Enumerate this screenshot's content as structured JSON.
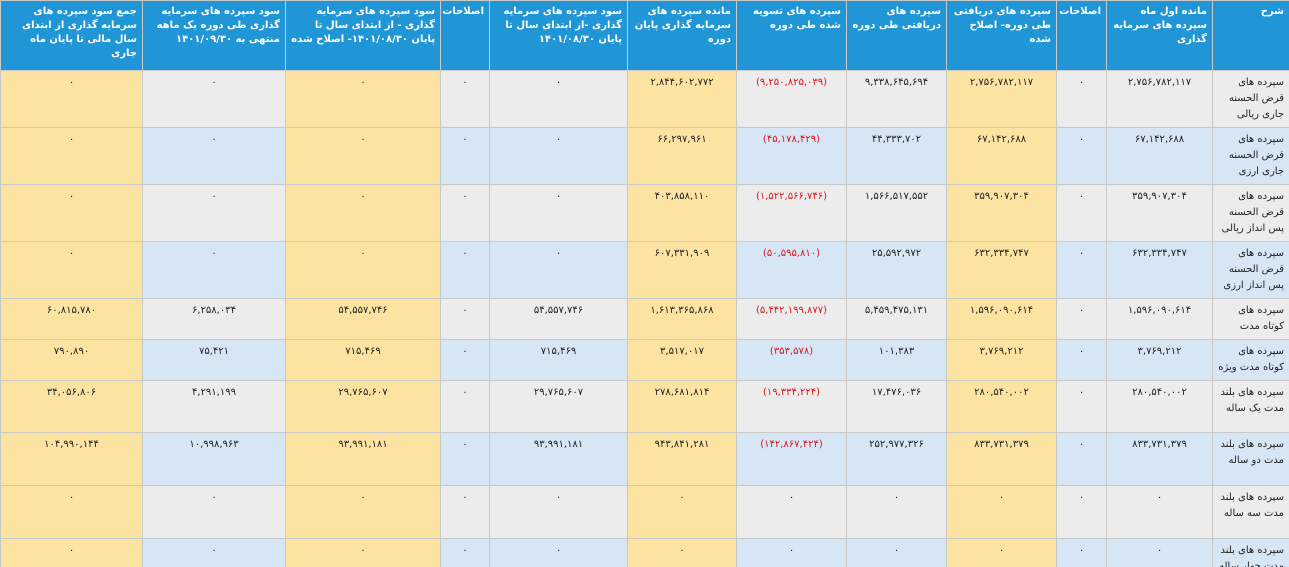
{
  "table": {
    "headers": [
      "شرح",
      "مانده اول ماه سپرده های سرمایه گذاری",
      "اصلاحات",
      "سپرده های دریافتی طی دوره- اصلاح شده",
      "سپرده های دریافتی طی دوره",
      "سپرده های تسویه شده طی دوره",
      "مانده سپرده های سرمایه گذاری پایان دوره",
      "سود سپرده های سرمایه گذاری -از ابتدای سال تا پایان ۱۴۰۱/۰۸/۳۰",
      "اصلاحات",
      "سود سپرده های سرمایه گذاری - از ابتدای سال تا پایان ۱۴۰۱/۰۸/۳۰- اصلاح شده",
      "سود سپرده های سرمایه گذاری طی دوره یک ماهه منتهی به ۱۴۰۱/۰۹/۳۰",
      "جمع سود سپرده های سرمایه گذاری از ابتدای سال مالی تا پایان ماه جاری"
    ],
    "rows": [
      [
        "سپرده های قرض الحسنه جاری ریالی",
        "۲,۷۵۶,۷۸۲,۱۱۷",
        "۰",
        "۲,۷۵۶,۷۸۲,۱۱۷",
        "۹,۳۳۸,۶۴۵,۶۹۴",
        "(۹,۲۵۰,۸۲۵,۰۳۹)",
        "۲,۸۴۴,۶۰۲,۷۷۲",
        "۰",
        "۰",
        "۰",
        "۰",
        "۰"
      ],
      [
        "سپرده های قرض الحسنه جاری ارزی",
        "۶۷,۱۴۲,۶۸۸",
        "۰",
        "۶۷,۱۴۲,۶۸۸",
        "۴۴,۳۳۳,۷۰۲",
        "(۴۵,۱۷۸,۴۲۹)",
        "۶۶,۲۹۷,۹۶۱",
        "۰",
        "۰",
        "۰",
        "۰",
        "۰"
      ],
      [
        "سپرده های قرض الحسنه پس انداز ریالی",
        "۳۵۹,۹۰۷,۳۰۴",
        "۰",
        "۳۵۹,۹۰۷,۳۰۴",
        "۱,۵۶۶,۵۱۷,۵۵۲",
        "(۱,۵۲۲,۵۶۶,۷۴۶)",
        "۴۰۳,۸۵۸,۱۱۰",
        "۰",
        "۰",
        "۰",
        "۰",
        "۰"
      ],
      [
        "سپرده های قرض الحسنه پس انداز ارزی",
        "۶۳۲,۳۳۴,۷۴۷",
        "۰",
        "۶۳۲,۳۳۴,۷۴۷",
        "۲۵,۵۹۲,۹۷۲",
        "(۵۰,۵۹۵,۸۱۰)",
        "۶۰۷,۳۳۱,۹۰۹",
        "۰",
        "۰",
        "۰",
        "۰",
        "۰"
      ],
      [
        "سپرده های کوتاه مدت",
        "۱,۵۹۶,۰۹۰,۶۱۴",
        "۰",
        "۱,۵۹۶,۰۹۰,۶۱۴",
        "۵,۴۵۹,۴۷۵,۱۳۱",
        "(۵,۴۴۲,۱۹۹,۸۷۷)",
        "۱,۶۱۳,۳۶۵,۸۶۸",
        "۵۴,۵۵۷,۷۴۶",
        "۰",
        "۵۴,۵۵۷,۷۴۶",
        "۶,۲۵۸,۰۳۴",
        "۶۰,۸۱۵,۷۸۰"
      ],
      [
        "سپرده های کوتاه مدت ویژه",
        "۳,۷۶۹,۲۱۲",
        "۰",
        "۳,۷۶۹,۲۱۲",
        "۱۰۱,۳۸۳",
        "(۳۵۳,۵۷۸)",
        "۳,۵۱۷,۰۱۷",
        "۷۱۵,۴۶۹",
        "۰",
        "۷۱۵,۴۶۹",
        "۷۵,۴۲۱",
        "۷۹۰,۸۹۰"
      ],
      [
        "سپرده های بلند مدت یک ساله",
        "۲۸۰,۵۴۰,۰۰۲",
        "۰",
        "۲۸۰,۵۴۰,۰۰۲",
        "۱۷,۴۷۶,۰۳۶",
        "(۱۹,۳۳۴,۲۲۴)",
        "۲۷۸,۶۸۱,۸۱۴",
        "۲۹,۷۶۵,۶۰۷",
        "۰",
        "۲۹,۷۶۵,۶۰۷",
        "۴,۲۹۱,۱۹۹",
        "۳۴,۰۵۶,۸۰۶"
      ],
      [
        "سپرده های بلند مدت دو ساله",
        "۸۳۳,۷۳۱,۳۷۹",
        "۰",
        "۸۳۳,۷۳۱,۳۷۹",
        "۲۵۲,۹۷۷,۳۲۶",
        "(۱۴۲,۸۶۷,۴۲۴)",
        "۹۴۳,۸۴۱,۲۸۱",
        "۹۳,۹۹۱,۱۸۱",
        "۰",
        "۹۳,۹۹۱,۱۸۱",
        "۱۰,۹۹۸,۹۶۳",
        "۱۰۴,۹۹۰,۱۴۴"
      ],
      [
        "سپرده های بلند مدت سه ساله",
        "۰",
        "۰",
        "۰",
        "۰",
        "۰",
        "۰",
        "۰",
        "۰",
        "۰",
        "۰",
        "۰"
      ],
      [
        "سپرده های بلند مدت چهار ساله",
        "۰",
        "۰",
        "۰",
        "۰",
        "۰",
        "۰",
        "۰",
        "۰",
        "۰",
        "۰",
        "۰"
      ]
    ]
  }
}
